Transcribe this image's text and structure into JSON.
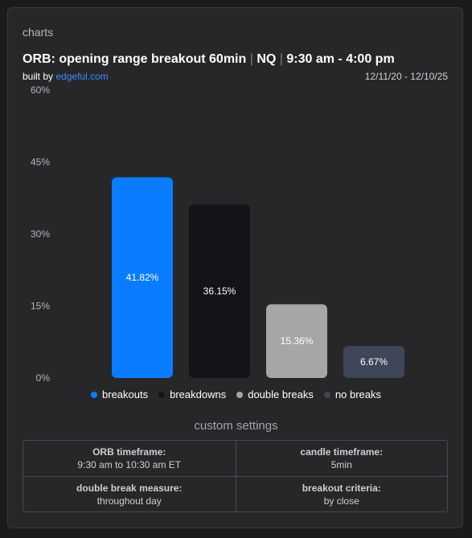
{
  "header": {
    "label": "charts"
  },
  "chart_data": {
    "type": "bar",
    "title_parts": [
      "ORB: opening range breakout 60min",
      "NQ",
      "9:30 am - 4:00 pm"
    ],
    "title_separator": "|",
    "built_by_prefix": "built by",
    "built_by_link": "edgeful.com",
    "date_range": "12/11/20 - 12/10/25",
    "categories": [
      "breakouts",
      "breakdowns",
      "double breaks",
      "no breaks"
    ],
    "values": [
      41.82,
      36.15,
      15.36,
      6.67
    ],
    "value_labels": [
      "41.82%",
      "36.15%",
      "15.36%",
      "6.67%"
    ],
    "colors": [
      "#0a7cff",
      "#141418",
      "#a6a6a6",
      "#3e4658"
    ],
    "ylim": [
      0,
      60
    ],
    "yticks": [
      0,
      15,
      30,
      45,
      60
    ],
    "ytick_labels": [
      "0%",
      "15%",
      "30%",
      "45%",
      "60%"
    ],
    "legend_placement": "bottom",
    "grid": false
  },
  "settings": {
    "title": "custom settings",
    "items": [
      {
        "label": "ORB timeframe:",
        "value": "9:30 am to 10:30 am ET"
      },
      {
        "label": "candle timeframe:",
        "value": "5min"
      },
      {
        "label": "double break measure:",
        "value": "throughout day"
      },
      {
        "label": "breakout criteria:",
        "value": "by close"
      }
    ]
  }
}
